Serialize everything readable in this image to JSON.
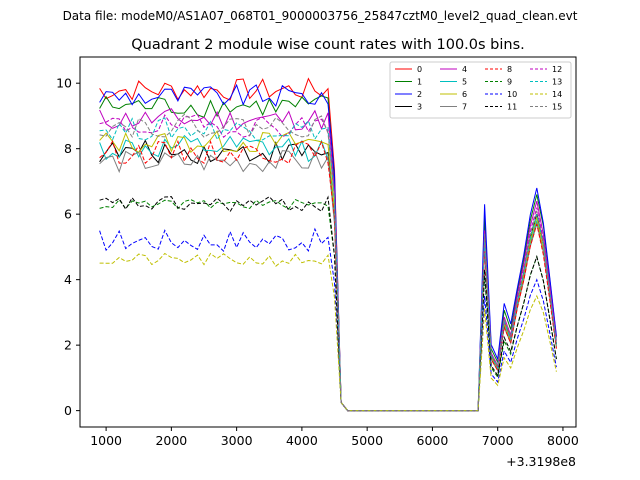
{
  "figure": {
    "suptitle": "Data file: modeM0/AS1A07_068T01_9000003756_25847cztM0_level2_quad_clean.evt",
    "title": "Quadrant 2 module wise count rates with 100.0s bins.",
    "offset_label": "+3.3198e8"
  },
  "chart_data": {
    "type": "line",
    "title": "Quadrant 2 module wise count rates with 100.0s bins.",
    "xlabel": "",
    "ylabel": "",
    "x_offset": "+3.3198e8",
    "xlim": [
      600,
      8200
    ],
    "ylim": [
      -0.5,
      10.8
    ],
    "xticks": [
      1000,
      2000,
      3000,
      4000,
      5000,
      6000,
      7000,
      8000
    ],
    "yticks": [
      0,
      2,
      4,
      6,
      8,
      10
    ],
    "legend": "top-right",
    "x": [
      900,
      1000,
      1100,
      1200,
      1300,
      1400,
      1500,
      1600,
      1700,
      1800,
      1900,
      2000,
      2100,
      2200,
      2300,
      2400,
      2500,
      2600,
      2700,
      2800,
      2900,
      3000,
      3100,
      3200,
      3300,
      3400,
      3500,
      3600,
      3700,
      3800,
      3900,
      4000,
      4100,
      4200,
      4300,
      4400,
      4500,
      4600,
      4700,
      4800,
      6600,
      6700,
      6800,
      6900,
      7000,
      7100,
      7200,
      7300,
      7400,
      7500,
      7600,
      7700,
      7800,
      7900
    ],
    "series": [
      {
        "name": "0",
        "color": "#ff0000",
        "dash": "solid",
        "base": 9.8,
        "noise": 0.35,
        "peaks": [
          5.3,
          6.0,
          5.8
        ]
      },
      {
        "name": "1",
        "color": "#008000",
        "dash": "solid",
        "base": 9.3,
        "noise": 0.35,
        "peaks": [
          5.9,
          6.6,
          6.4
        ]
      },
      {
        "name": "2",
        "color": "#0000ff",
        "dash": "solid",
        "base": 9.6,
        "noise": 0.35,
        "peaks": [
          6.3,
          6.8,
          6.5
        ]
      },
      {
        "name": "3",
        "color": "#000000",
        "dash": "solid",
        "base": 7.9,
        "noise": 0.35,
        "peaks": [
          5.1,
          6.0,
          5.8
        ]
      },
      {
        "name": "4",
        "color": "#bf00bf",
        "dash": "solid",
        "base": 8.9,
        "noise": 0.35,
        "peaks": [
          5.5,
          6.4,
          6.1
        ]
      },
      {
        "name": "5",
        "color": "#00bfbf",
        "dash": "solid",
        "base": 8.0,
        "noise": 0.4,
        "peaks": [
          5.0,
          5.8,
          5.6
        ]
      },
      {
        "name": "6",
        "color": "#bfbf00",
        "dash": "solid",
        "base": 8.2,
        "noise": 0.35,
        "peaks": [
          5.1,
          5.9,
          5.6
        ]
      },
      {
        "name": "7",
        "color": "#808080",
        "dash": "solid",
        "base": 7.6,
        "noise": 0.35,
        "peaks": [
          4.9,
          5.7,
          5.5
        ]
      },
      {
        "name": "8",
        "color": "#ff0000",
        "dash": "dashed",
        "base": 7.9,
        "noise": 0.35,
        "peaks": [
          4.9,
          5.7,
          5.4
        ]
      },
      {
        "name": "9",
        "color": "#008000",
        "dash": "dashed",
        "base": 6.3,
        "noise": 0.15,
        "peaks": [
          4.1,
          4.7,
          4.5
        ]
      },
      {
        "name": "10",
        "color": "#0000ff",
        "dash": "dashed",
        "base": 5.2,
        "noise": 0.35,
        "peaks": [
          3.5,
          4.0,
          3.8
        ]
      },
      {
        "name": "11",
        "color": "#000000",
        "dash": "dashed",
        "base": 6.3,
        "noise": 0.25,
        "peaks": [
          4.3,
          4.7,
          4.5
        ]
      },
      {
        "name": "12",
        "color": "#bf00bf",
        "dash": "dashed",
        "base": 8.7,
        "noise": 0.35,
        "peaks": [
          5.3,
          6.2,
          5.9
        ]
      },
      {
        "name": "13",
        "color": "#00bfbf",
        "dash": "dashed",
        "base": 8.6,
        "noise": 0.35,
        "peaks": [
          5.2,
          6.0,
          5.8
        ]
      },
      {
        "name": "14",
        "color": "#bfbf00",
        "dash": "dashed",
        "base": 4.6,
        "noise": 0.2,
        "peaks": [
          3.1,
          3.5,
          3.4
        ]
      },
      {
        "name": "15",
        "color": "#808080",
        "dash": "dashed",
        "base": 8.7,
        "noise": 0.35,
        "peaks": [
          5.4,
          6.1,
          5.8
        ]
      }
    ]
  }
}
